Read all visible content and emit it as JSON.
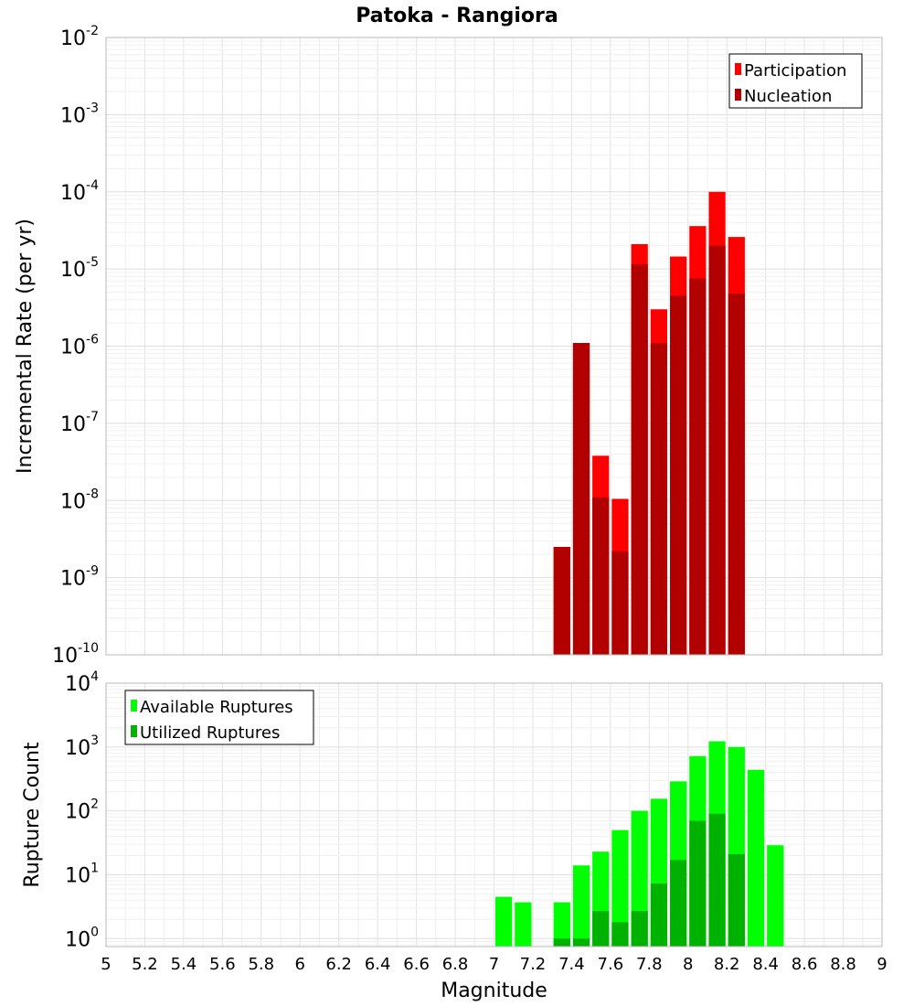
{
  "chart_data": [
    {
      "type": "bar",
      "title": "Patoka - Rangiora",
      "ylabel": "Incremental Rate (per yr)",
      "yscale": "log",
      "ylim": [
        1e-10,
        0.01
      ],
      "y_ticks": [
        {
          "base": "10",
          "exp": "-10",
          "value": 1e-10
        },
        {
          "base": "10",
          "exp": "-9",
          "value": 1e-09
        },
        {
          "base": "10",
          "exp": "-8",
          "value": 1e-08
        },
        {
          "base": "10",
          "exp": "-7",
          "value": 1e-07
        },
        {
          "base": "10",
          "exp": "-6",
          "value": 1e-06
        },
        {
          "base": "10",
          "exp": "-5",
          "value": 1e-05
        },
        {
          "base": "10",
          "exp": "-4",
          "value": 0.0001
        },
        {
          "base": "10",
          "exp": "-3",
          "value": 0.001
        },
        {
          "base": "10",
          "exp": "-2",
          "value": 0.01
        }
      ],
      "xlim": [
        5,
        9
      ],
      "bin_width": 0.1,
      "grid": true,
      "legend_position": "top-right",
      "series": [
        {
          "name": "Participation",
          "color": "#ff0000",
          "x": [
            7.35,
            7.45,
            7.55,
            7.65,
            7.75,
            7.85,
            7.95,
            8.05,
            8.15,
            8.25
          ],
          "values": [
            2.5e-09,
            1.1e-06,
            3.8e-08,
            1.05e-08,
            2.1e-05,
            3e-06,
            1.45e-05,
            3.6e-05,
            0.0001,
            2.6e-05
          ]
        },
        {
          "name": "Nucleation",
          "color": "#b20000",
          "x": [
            7.35,
            7.45,
            7.55,
            7.65,
            7.75,
            7.85,
            7.95,
            8.05,
            8.15,
            8.25
          ],
          "values": [
            2.5e-09,
            1.1e-06,
            1.1e-08,
            2.2e-09,
            1.15e-05,
            1.1e-06,
            4.5e-06,
            7.5e-06,
            2e-05,
            4.8e-06
          ]
        }
      ]
    },
    {
      "type": "bar",
      "xlabel": "Magnitude",
      "ylabel": "Rupture Count",
      "yscale": "log",
      "ylim": [
        0.75,
        10000
      ],
      "y_ticks": [
        {
          "base": "10",
          "exp": "0",
          "value": 1
        },
        {
          "base": "10",
          "exp": "1",
          "value": 10
        },
        {
          "base": "10",
          "exp": "2",
          "value": 100
        },
        {
          "base": "10",
          "exp": "3",
          "value": 1000
        },
        {
          "base": "10",
          "exp": "4",
          "value": 10000
        }
      ],
      "xlim": [
        5,
        9
      ],
      "x_ticks": [
        "5",
        "5.2",
        "5.4",
        "5.6",
        "5.8",
        "6",
        "6.2",
        "6.4",
        "6.6",
        "6.8",
        "7",
        "7.2",
        "7.4",
        "7.6",
        "7.8",
        "8",
        "8.2",
        "8.4",
        "8.6",
        "8.8",
        "9"
      ],
      "bin_width": 0.1,
      "grid": true,
      "legend_position": "top-left",
      "series": [
        {
          "name": "Available Ruptures",
          "color": "#00ff00",
          "x": [
            7.05,
            7.15,
            7.35,
            7.45,
            7.55,
            7.65,
            7.75,
            7.85,
            7.95,
            8.05,
            8.15,
            8.25,
            8.35,
            8.45
          ],
          "values": [
            4.5,
            3.7,
            3.7,
            14,
            23,
            50,
            100,
            155,
            290,
            720,
            1230,
            1000,
            440,
            29
          ]
        },
        {
          "name": "Utilized Ruptures",
          "color": "#00b200",
          "x": [
            7.35,
            7.45,
            7.55,
            7.65,
            7.75,
            7.85,
            7.95,
            8.05,
            8.15,
            8.25
          ],
          "values": [
            1,
            1,
            2.7,
            1.8,
            2.7,
            7.3,
            17,
            70,
            90,
            21
          ]
        }
      ]
    }
  ]
}
